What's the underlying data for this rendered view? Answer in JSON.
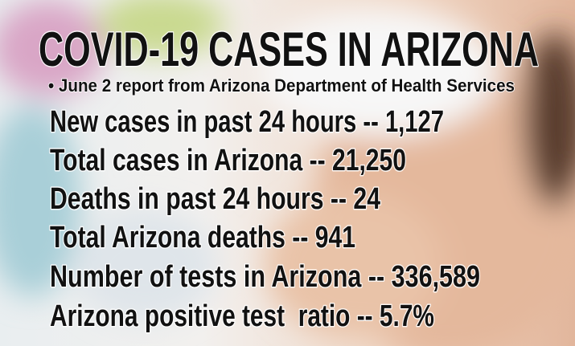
{
  "header": {
    "title": "COVID-19 CASES IN ARIZONA",
    "subtitle": "• June 2 report from Arizona Department of Health Services"
  },
  "facts": [
    "New cases in past 24 hours -- 1,127",
    "Total cases in Arizona -- 21,250",
    "Deaths in past 24 hours -- 24",
    "Total Arizona deaths -- 941",
    "Number of tests in Arizona -- 336,589",
    "Arizona positive test  ratio -- 5.7%"
  ]
}
